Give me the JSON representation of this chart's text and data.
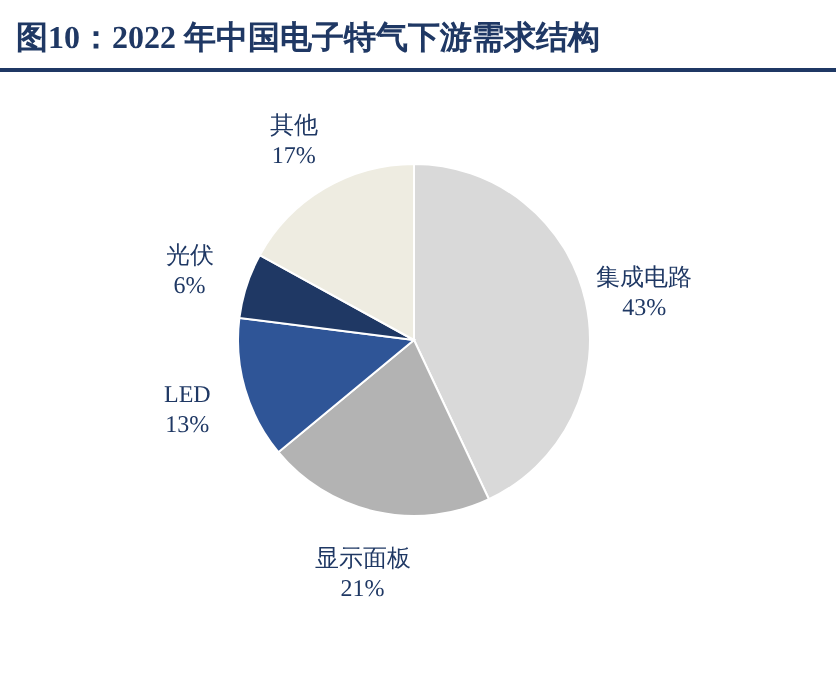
{
  "chart_data": {
    "type": "pie",
    "title": "图10：2022 年中国电子特气下游需求结构",
    "categories": [
      "集成电路",
      "显示面板",
      "LED",
      "光伏",
      "其他"
    ],
    "values": [
      43,
      21,
      13,
      6,
      17
    ],
    "colors": [
      "#d9d9d9",
      "#b3b3b3",
      "#2f5597",
      "#1f3864",
      "#eeece1"
    ],
    "value_labels": [
      "43%",
      "21%",
      "13%",
      "6%",
      "17%"
    ]
  }
}
